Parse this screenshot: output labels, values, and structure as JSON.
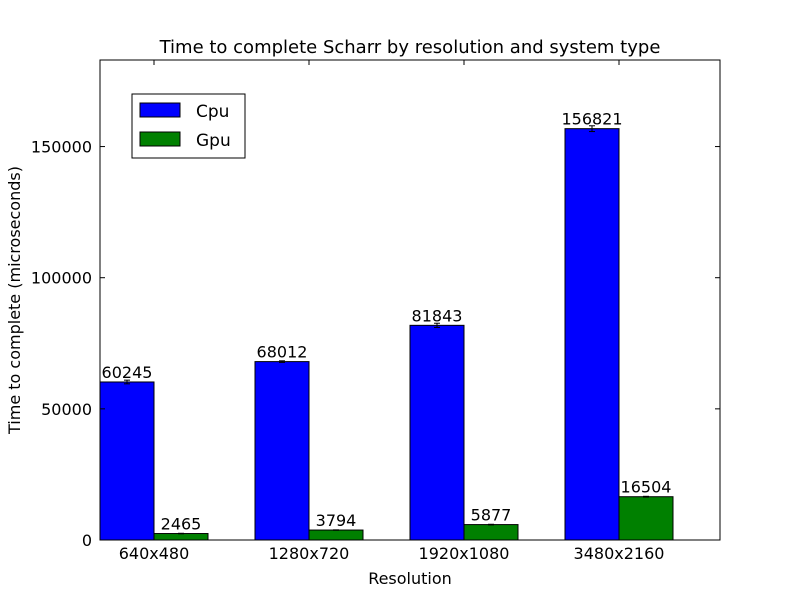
{
  "chart_data": {
    "type": "bar",
    "title": "Time to complete Scharr by resolution and system type",
    "xlabel": "Resolution",
    "ylabel": "Time to complete (microseconds)",
    "categories": [
      "640x480",
      "1280x720",
      "1920x1080",
      "3480x2160"
    ],
    "series": [
      {
        "name": "Cpu",
        "color": "#0000ff",
        "values": [
          60245,
          68012,
          81843,
          156821
        ],
        "errors": [
          700,
          300,
          800,
          1100
        ]
      },
      {
        "name": "Gpu",
        "color": "#008000",
        "values": [
          2465,
          3794,
          5877,
          16504
        ],
        "errors": [
          100,
          80,
          120,
          150
        ]
      }
    ],
    "ylim": [
      0,
      183000
    ],
    "yticks": [
      0,
      50000,
      100000,
      150000
    ],
    "grid": false,
    "legend_position": "upper left"
  }
}
